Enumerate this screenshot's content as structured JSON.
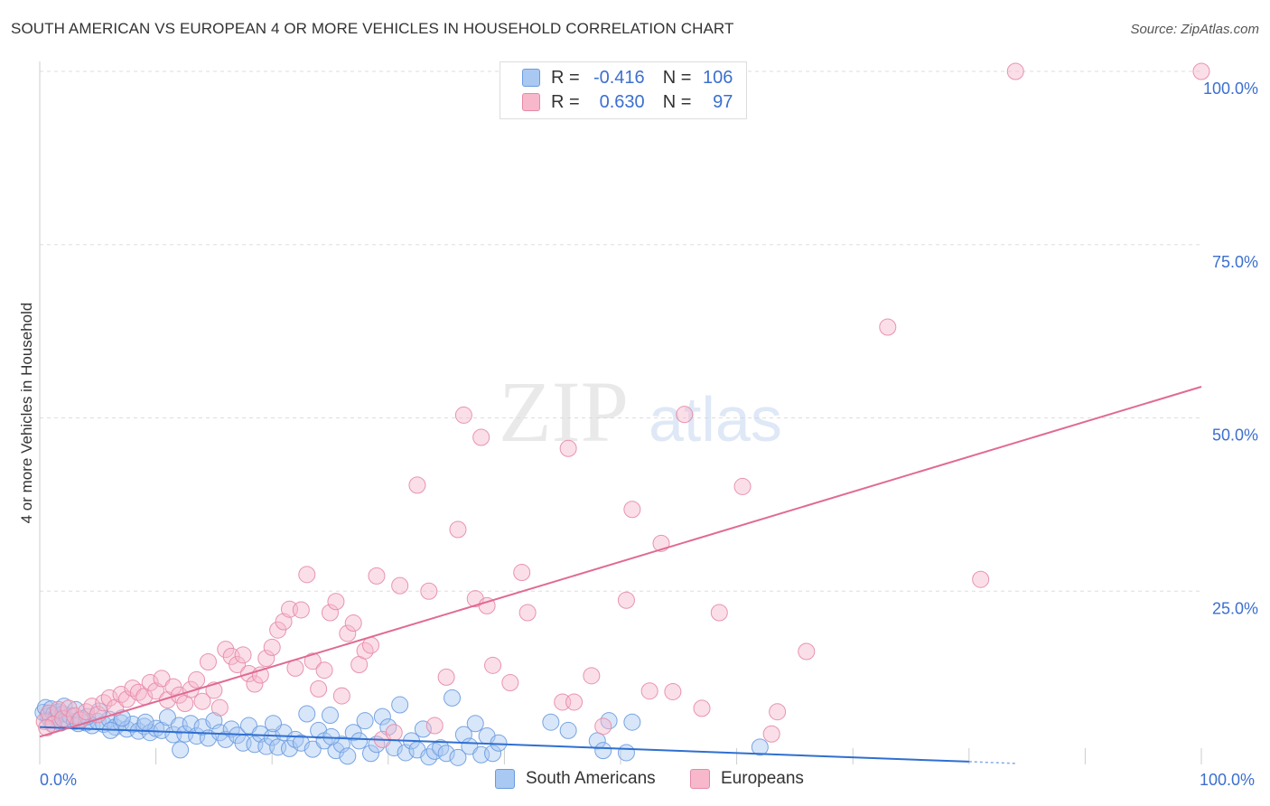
{
  "title": "SOUTH AMERICAN VS EUROPEAN 4 OR MORE VEHICLES IN HOUSEHOLD CORRELATION CHART",
  "source": "Source: ZipAtlas.com",
  "watermark": {
    "zip": "ZIP",
    "atlas": "atlas"
  },
  "legend": {
    "rows": [
      {
        "r_label": "R =",
        "r_value": "-0.416",
        "n_label": "N =",
        "n_value": "106",
        "color": "#a9c8f2",
        "border": "#6a9be0"
      },
      {
        "r_label": "R =",
        "r_value": "0.630",
        "n_label": "N =",
        "n_value": "97",
        "color": "#f7b8cc",
        "border": "#e589a7"
      }
    ]
  },
  "bottom_legend": {
    "south_americans": "South Americans",
    "europeans": "Europeans"
  },
  "chart_data": {
    "type": "scatter",
    "title": "SOUTH AMERICAN VS EUROPEAN 4 OR MORE VEHICLES IN HOUSEHOLD CORRELATION CHART",
    "xlabel": "",
    "ylabel": "4 or more Vehicles in Household",
    "xlim": [
      0,
      100
    ],
    "ylim": [
      0,
      100
    ],
    "x_tick_labels": {
      "left": "0.0%",
      "right": "100.0%"
    },
    "y_ticks": [
      {
        "value": 100,
        "label": "100.0%"
      },
      {
        "value": 75,
        "label": "75.0%"
      },
      {
        "value": 50,
        "label": "50.0%"
      },
      {
        "value": 25,
        "label": "25.0%"
      }
    ],
    "grid": true,
    "series": [
      {
        "name": "South Americans",
        "color": "#a9c8f2",
        "edge": "#6a9be0",
        "trend": {
          "x0": 0,
          "y0": 5.4,
          "x1": 80,
          "y1": 0.4,
          "color": "#2f6fd0"
        },
        "points": [
          [
            0.3,
            7.5
          ],
          [
            0.5,
            8.2
          ],
          [
            0.7,
            7.0
          ],
          [
            0.9,
            6.4
          ],
          [
            1.0,
            8.0
          ],
          [
            1.2,
            7.2
          ],
          [
            1.4,
            6.8
          ],
          [
            1.6,
            7.6
          ],
          [
            1.8,
            6.0
          ],
          [
            2.0,
            7.3
          ],
          [
            2.3,
            6.5
          ],
          [
            2.6,
            7.0
          ],
          [
            3.0,
            6.2
          ],
          [
            3.3,
            5.9
          ],
          [
            3.6,
            6.6
          ],
          [
            4.0,
            6.0
          ],
          [
            4.5,
            5.6
          ],
          [
            5.0,
            6.2
          ],
          [
            5.5,
            5.8
          ],
          [
            6.0,
            6.5
          ],
          [
            6.5,
            5.4
          ],
          [
            7.0,
            6.0
          ],
          [
            7.5,
            5.1
          ],
          [
            8.0,
            5.8
          ],
          [
            8.5,
            4.8
          ],
          [
            9.0,
            5.5
          ],
          [
            9.5,
            4.6
          ],
          [
            10.0,
            5.2
          ],
          [
            10.5,
            4.9
          ],
          [
            11.0,
            6.8
          ],
          [
            11.5,
            4.3
          ],
          [
            12.0,
            5.6
          ],
          [
            12.5,
            4.4
          ],
          [
            13.0,
            5.9
          ],
          [
            13.5,
            4.1
          ],
          [
            14.0,
            5.4
          ],
          [
            14.5,
            3.8
          ],
          [
            15.0,
            6.3
          ],
          [
            15.5,
            4.6
          ],
          [
            16.0,
            3.6
          ],
          [
            16.5,
            5.1
          ],
          [
            17.0,
            4.2
          ],
          [
            17.5,
            3.1
          ],
          [
            18.0,
            5.6
          ],
          [
            18.5,
            2.9
          ],
          [
            19.0,
            4.4
          ],
          [
            19.5,
            2.6
          ],
          [
            20.0,
            3.9
          ],
          [
            20.5,
            2.5
          ],
          [
            21.0,
            4.6
          ],
          [
            21.5,
            2.3
          ],
          [
            22.0,
            3.6
          ],
          [
            22.5,
            3.1
          ],
          [
            23.0,
            7.3
          ],
          [
            23.5,
            2.2
          ],
          [
            24.0,
            4.9
          ],
          [
            24.5,
            3.4
          ],
          [
            25.0,
            7.1
          ],
          [
            25.5,
            2.0
          ],
          [
            26.0,
            2.9
          ],
          [
            26.5,
            1.2
          ],
          [
            27.0,
            4.6
          ],
          [
            27.5,
            3.4
          ],
          [
            28.0,
            6.3
          ],
          [
            28.5,
            1.6
          ],
          [
            29.0,
            2.9
          ],
          [
            29.5,
            6.9
          ],
          [
            30.0,
            5.4
          ],
          [
            30.5,
            2.4
          ],
          [
            31.0,
            8.6
          ],
          [
            31.5,
            1.7
          ],
          [
            32.0,
            3.4
          ],
          [
            32.5,
            2.1
          ],
          [
            33.0,
            5.1
          ],
          [
            33.5,
            1.1
          ],
          [
            34.0,
            1.9
          ],
          [
            34.5,
            2.4
          ],
          [
            35.0,
            1.6
          ],
          [
            35.5,
            9.6
          ],
          [
            36.0,
            1.0
          ],
          [
            36.5,
            4.3
          ],
          [
            37.0,
            2.6
          ],
          [
            37.5,
            5.9
          ],
          [
            38.0,
            1.4
          ],
          [
            38.5,
            4.1
          ],
          [
            39.0,
            1.6
          ],
          [
            39.5,
            3.1
          ],
          [
            44.0,
            6.1
          ],
          [
            45.5,
            4.9
          ],
          [
            48.0,
            3.4
          ],
          [
            48.5,
            2.0
          ],
          [
            49.0,
            6.3
          ],
          [
            50.5,
            1.7
          ],
          [
            51.0,
            6.1
          ],
          [
            1.1,
            5.8
          ],
          [
            2.1,
            8.4
          ],
          [
            3.1,
            7.9
          ],
          [
            4.1,
            6.9
          ],
          [
            5.1,
            7.7
          ],
          [
            6.1,
            4.9
          ],
          [
            7.1,
            6.7
          ],
          [
            9.1,
            6.1
          ],
          [
            12.1,
            2.1
          ],
          [
            20.1,
            5.9
          ],
          [
            25.1,
            4.0
          ],
          [
            62.0,
            2.5
          ]
        ]
      },
      {
        "name": "Europeans",
        "color": "#f7b8cc",
        "edge": "#e589a7",
        "trend": {
          "x0": 0,
          "y0": 4.0,
          "x1": 100,
          "y1": 54.5,
          "color": "#e06a92"
        },
        "points": [
          [
            0.4,
            6.2
          ],
          [
            0.8,
            7.4
          ],
          [
            1.2,
            5.8
          ],
          [
            1.6,
            7.9
          ],
          [
            2.0,
            6.6
          ],
          [
            2.5,
            8.1
          ],
          [
            3.0,
            7.0
          ],
          [
            3.5,
            6.4
          ],
          [
            4.0,
            7.6
          ],
          [
            4.5,
            8.4
          ],
          [
            5.0,
            7.2
          ],
          [
            5.5,
            8.9
          ],
          [
            6.0,
            9.6
          ],
          [
            6.5,
            8.2
          ],
          [
            7.0,
            10.1
          ],
          [
            7.5,
            9.4
          ],
          [
            8.0,
            11.0
          ],
          [
            8.5,
            10.4
          ],
          [
            9.0,
            9.8
          ],
          [
            9.5,
            11.8
          ],
          [
            10.0,
            10.6
          ],
          [
            10.5,
            12.4
          ],
          [
            11.0,
            9.3
          ],
          [
            11.5,
            11.2
          ],
          [
            12.0,
            10.0
          ],
          [
            12.5,
            8.8
          ],
          [
            13.0,
            10.8
          ],
          [
            13.5,
            12.2
          ],
          [
            14.0,
            9.1
          ],
          [
            14.5,
            14.8
          ],
          [
            15.0,
            10.7
          ],
          [
            15.5,
            8.2
          ],
          [
            16.0,
            16.6
          ],
          [
            16.5,
            15.6
          ],
          [
            17.0,
            14.4
          ],
          [
            17.5,
            15.8
          ],
          [
            18.0,
            13.1
          ],
          [
            18.5,
            11.6
          ],
          [
            19.0,
            12.9
          ],
          [
            19.5,
            15.3
          ],
          [
            20.0,
            16.9
          ],
          [
            20.5,
            19.4
          ],
          [
            21.0,
            20.6
          ],
          [
            21.5,
            22.4
          ],
          [
            22.0,
            13.9
          ],
          [
            22.5,
            22.3
          ],
          [
            23.0,
            27.4
          ],
          [
            23.5,
            14.9
          ],
          [
            24.0,
            10.9
          ],
          [
            24.5,
            13.6
          ],
          [
            25.0,
            21.9
          ],
          [
            25.5,
            23.5
          ],
          [
            26.0,
            9.9
          ],
          [
            26.5,
            18.9
          ],
          [
            27.0,
            20.4
          ],
          [
            27.5,
            14.4
          ],
          [
            28.0,
            16.4
          ],
          [
            28.5,
            17.2
          ],
          [
            29.0,
            27.2
          ],
          [
            29.5,
            3.6
          ],
          [
            30.5,
            4.6
          ],
          [
            31.0,
            25.8
          ],
          [
            32.5,
            40.3
          ],
          [
            33.5,
            25.0
          ],
          [
            34.0,
            5.6
          ],
          [
            35.0,
            12.6
          ],
          [
            36.0,
            33.9
          ],
          [
            36.5,
            50.4
          ],
          [
            37.5,
            23.9
          ],
          [
            38.0,
            47.2
          ],
          [
            38.5,
            22.9
          ],
          [
            39.0,
            14.3
          ],
          [
            40.5,
            11.8
          ],
          [
            41.5,
            27.7
          ],
          [
            42.0,
            21.9
          ],
          [
            45.0,
            9.0
          ],
          [
            45.5,
            45.6
          ],
          [
            46.0,
            9.0
          ],
          [
            47.5,
            12.8
          ],
          [
            48.5,
            5.5
          ],
          [
            50.5,
            23.7
          ],
          [
            51.0,
            36.8
          ],
          [
            52.5,
            10.6
          ],
          [
            53.5,
            31.9
          ],
          [
            54.5,
            10.5
          ],
          [
            55.5,
            50.5
          ],
          [
            57.0,
            8.1
          ],
          [
            58.5,
            21.9
          ],
          [
            60.5,
            40.1
          ],
          [
            63.0,
            4.4
          ],
          [
            63.5,
            7.6
          ],
          [
            66.0,
            16.3
          ],
          [
            73.0,
            63.1
          ],
          [
            81.0,
            26.7
          ],
          [
            84.0,
            100.0
          ],
          [
            100.0,
            100.0
          ],
          [
            0.6,
            5.3
          ]
        ]
      }
    ]
  }
}
